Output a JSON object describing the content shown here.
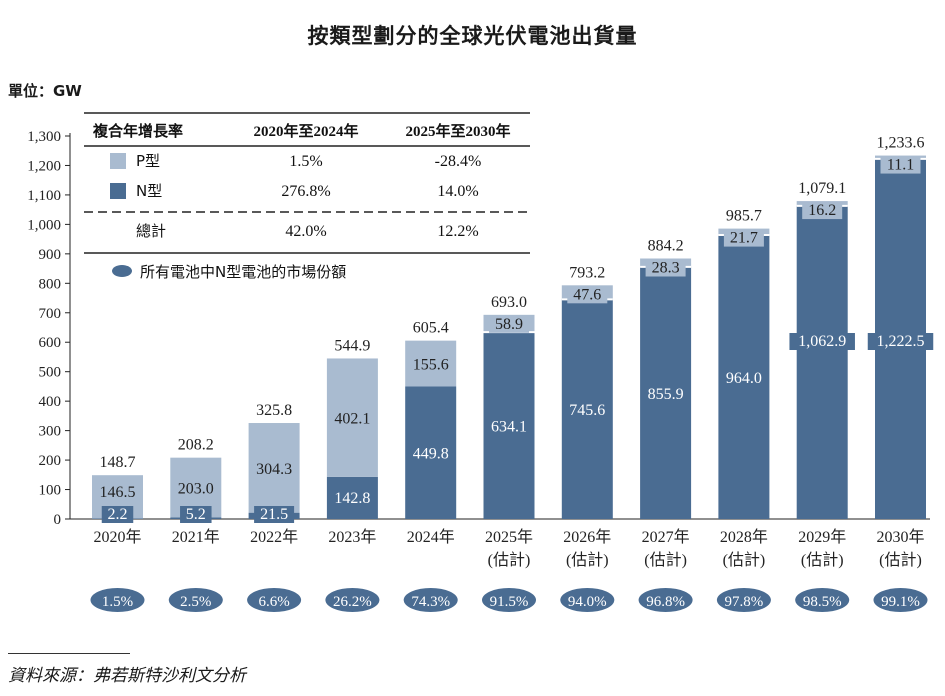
{
  "title": "按類型劃分的全球光伏電池出貨量",
  "unit_label": "單位：GW",
  "source": "資料來源：弗若斯特沙利文分析",
  "colors": {
    "p_type": "#a9bbd0",
    "n_type": "#4a6c92",
    "ellipse": "#4a6c92"
  },
  "cagr_table": {
    "header": [
      "複合年增長率",
      "2020年至2024年",
      "2025年至2030年"
    ],
    "rows": [
      {
        "label": "P型",
        "icon": "p-type-swatch",
        "values": [
          "1.5%",
          "-28.4%"
        ]
      },
      {
        "label": "N型",
        "icon": "n-type-swatch",
        "values": [
          "276.8%",
          "14.0%"
        ]
      },
      {
        "label": "總計",
        "icon": "",
        "values": [
          "42.0%",
          "12.2%"
        ]
      }
    ]
  },
  "share_legend": "所有電池中N型電池的市場份額",
  "chart_data": {
    "type": "bar",
    "stacked": true,
    "categories": [
      [
        "2020年"
      ],
      [
        "2021年"
      ],
      [
        "2022年"
      ],
      [
        "2023年"
      ],
      [
        "2024年"
      ],
      [
        "2025年",
        "(估計)"
      ],
      [
        "2026年",
        "(估計)"
      ],
      [
        "2027年",
        "(估計)"
      ],
      [
        "2028年",
        "(估計)"
      ],
      [
        "2029年",
        "(估計)"
      ],
      [
        "2030年",
        "(估計)"
      ]
    ],
    "series": [
      {
        "name": "N型",
        "values": [
          2.2,
          5.2,
          21.5,
          142.8,
          449.8,
          634.1,
          745.6,
          855.9,
          964.0,
          1062.9,
          1222.5
        ],
        "labels": [
          "2.2",
          "5.2",
          "21.5",
          "142.8",
          "449.8",
          "634.1",
          "745.6",
          "855.9",
          "964.0",
          "1,062.9",
          "1,222.5"
        ]
      },
      {
        "name": "P型",
        "values": [
          146.5,
          203.0,
          304.3,
          402.1,
          155.6,
          58.9,
          47.6,
          28.3,
          21.7,
          16.2,
          11.1
        ],
        "labels": [
          "146.5",
          "203.0",
          "304.3",
          "402.1",
          "155.6",
          "58.9",
          "47.6",
          "28.3",
          "21.7",
          "16.2",
          "11.1"
        ]
      }
    ],
    "totals": [
      "148.7",
      "208.2",
      "325.8",
      "544.9",
      "605.4",
      "693.0",
      "793.2",
      "884.2",
      "985.7",
      "1,079.1",
      "1,233.6"
    ],
    "n_share": [
      "1.5%",
      "2.5%",
      "6.6%",
      "26.2%",
      "74.3%",
      "91.5%",
      "94.0%",
      "96.8%",
      "97.8%",
      "98.5%",
      "99.1%"
    ],
    "ylim": [
      0,
      1300
    ],
    "yticks": [
      "0",
      "100",
      "200",
      "300",
      "400",
      "500",
      "600",
      "700",
      "800",
      "900",
      "1,000",
      "1,100",
      "1,200",
      "1,300"
    ]
  }
}
